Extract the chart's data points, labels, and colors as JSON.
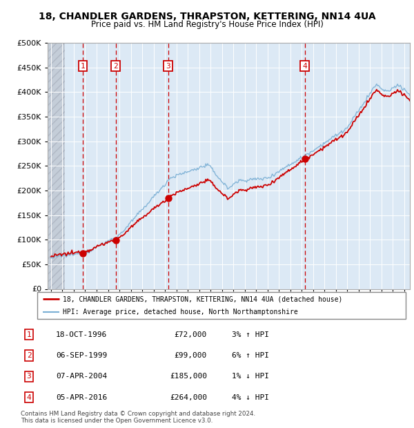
{
  "title": "18, CHANDLER GARDENS, THRAPSTON, KETTERING, NN14 4UA",
  "subtitle": "Price paid vs. HM Land Registry's House Price Index (HPI)",
  "ylim": [
    0,
    500000
  ],
  "yticks": [
    0,
    50000,
    100000,
    150000,
    200000,
    250000,
    300000,
    350000,
    400000,
    450000,
    500000
  ],
  "xlim_start": 1993.7,
  "xlim_end": 2025.5,
  "transactions": [
    {
      "label": "1",
      "date_num": 1996.79,
      "price": 72000
    },
    {
      "label": "2",
      "date_num": 1999.67,
      "price": 99000
    },
    {
      "label": "3",
      "date_num": 2004.27,
      "price": 185000
    },
    {
      "label": "4",
      "date_num": 2016.27,
      "price": 264000
    }
  ],
  "transaction_details": [
    {
      "num": "1",
      "date": "18-OCT-1996",
      "price": "£72,000",
      "hpi": "3% ↑ HPI"
    },
    {
      "num": "2",
      "date": "06-SEP-1999",
      "price": "£99,000",
      "hpi": "6% ↑ HPI"
    },
    {
      "num": "3",
      "date": "07-APR-2004",
      "price": "£185,000",
      "hpi": "1% ↓ HPI"
    },
    {
      "num": "4",
      "date": "05-APR-2016",
      "price": "£264,000",
      "hpi": "4% ↓ HPI"
    }
  ],
  "legend_line1": "18, CHANDLER GARDENS, THRAPSTON, KETTERING, NN14 4UA (detached house)",
  "legend_line2": "HPI: Average price, detached house, North Northamptonshire",
  "footer": "Contains HM Land Registry data © Crown copyright and database right 2024.\nThis data is licensed under the Open Government Licence v3.0.",
  "line_color": "#cc0000",
  "hpi_color": "#7aafd4",
  "bg_color": "#dce9f5",
  "hatch_color": "#c4cdd8",
  "grid_color": "#ffffff",
  "vline_color": "#cc0000",
  "dot_color": "#cc0000",
  "box_color": "#cc0000"
}
